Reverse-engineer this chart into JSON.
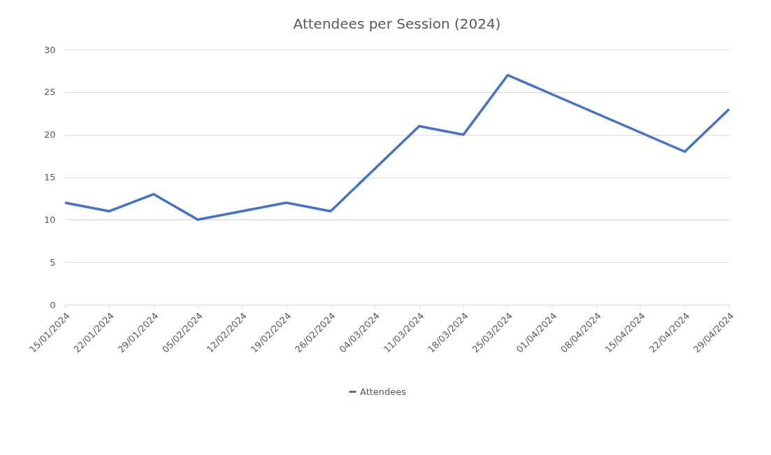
{
  "chart_data": {
    "type": "line",
    "title": "Attendees per Session (2024)",
    "x": [
      "2024-01-15",
      "2024-01-22",
      "2024-01-29",
      "2024-02-05",
      "2024-02-19",
      "2024-02-26",
      "2024-03-11",
      "2024-03-18",
      "2024-03-25",
      "2024-04-22",
      "2024-04-29"
    ],
    "series": [
      {
        "name": "Attendees",
        "color": "#4472c4",
        "values": [
          12,
          11,
          13,
          10,
          12,
          11,
          21,
          20,
          27,
          18,
          23
        ]
      }
    ],
    "xlim": [
      "2024-01-15",
      "2024-04-29"
    ],
    "xticks": [
      {
        "value": "2024-01-15",
        "label": "15/01/2024"
      },
      {
        "value": "2024-01-22",
        "label": "22/01/2024"
      },
      {
        "value": "2024-01-29",
        "label": "29/01/2024"
      },
      {
        "value": "2024-02-05",
        "label": "05/02/2024"
      },
      {
        "value": "2024-02-12",
        "label": "12/02/2024"
      },
      {
        "value": "2024-02-19",
        "label": "19/02/2024"
      },
      {
        "value": "2024-02-26",
        "label": "26/02/2024"
      },
      {
        "value": "2024-03-04",
        "label": "04/03/2024"
      },
      {
        "value": "2024-03-11",
        "label": "11/03/2024"
      },
      {
        "value": "2024-03-18",
        "label": "18/03/2024"
      },
      {
        "value": "2024-03-25",
        "label": "25/03/2024"
      },
      {
        "value": "2024-04-01",
        "label": "01/04/2024"
      },
      {
        "value": "2024-04-08",
        "label": "08/04/2024"
      },
      {
        "value": "2024-04-15",
        "label": "15/04/2024"
      },
      {
        "value": "2024-04-22",
        "label": "22/04/2024"
      },
      {
        "value": "2024-04-29",
        "label": "29/04/2024"
      }
    ],
    "ylim": [
      0,
      30
    ],
    "yticks": [
      0,
      5,
      10,
      15,
      20,
      25,
      30
    ],
    "grid": "y",
    "legend": "bottom",
    "marker": "none",
    "line_style": "solid"
  }
}
